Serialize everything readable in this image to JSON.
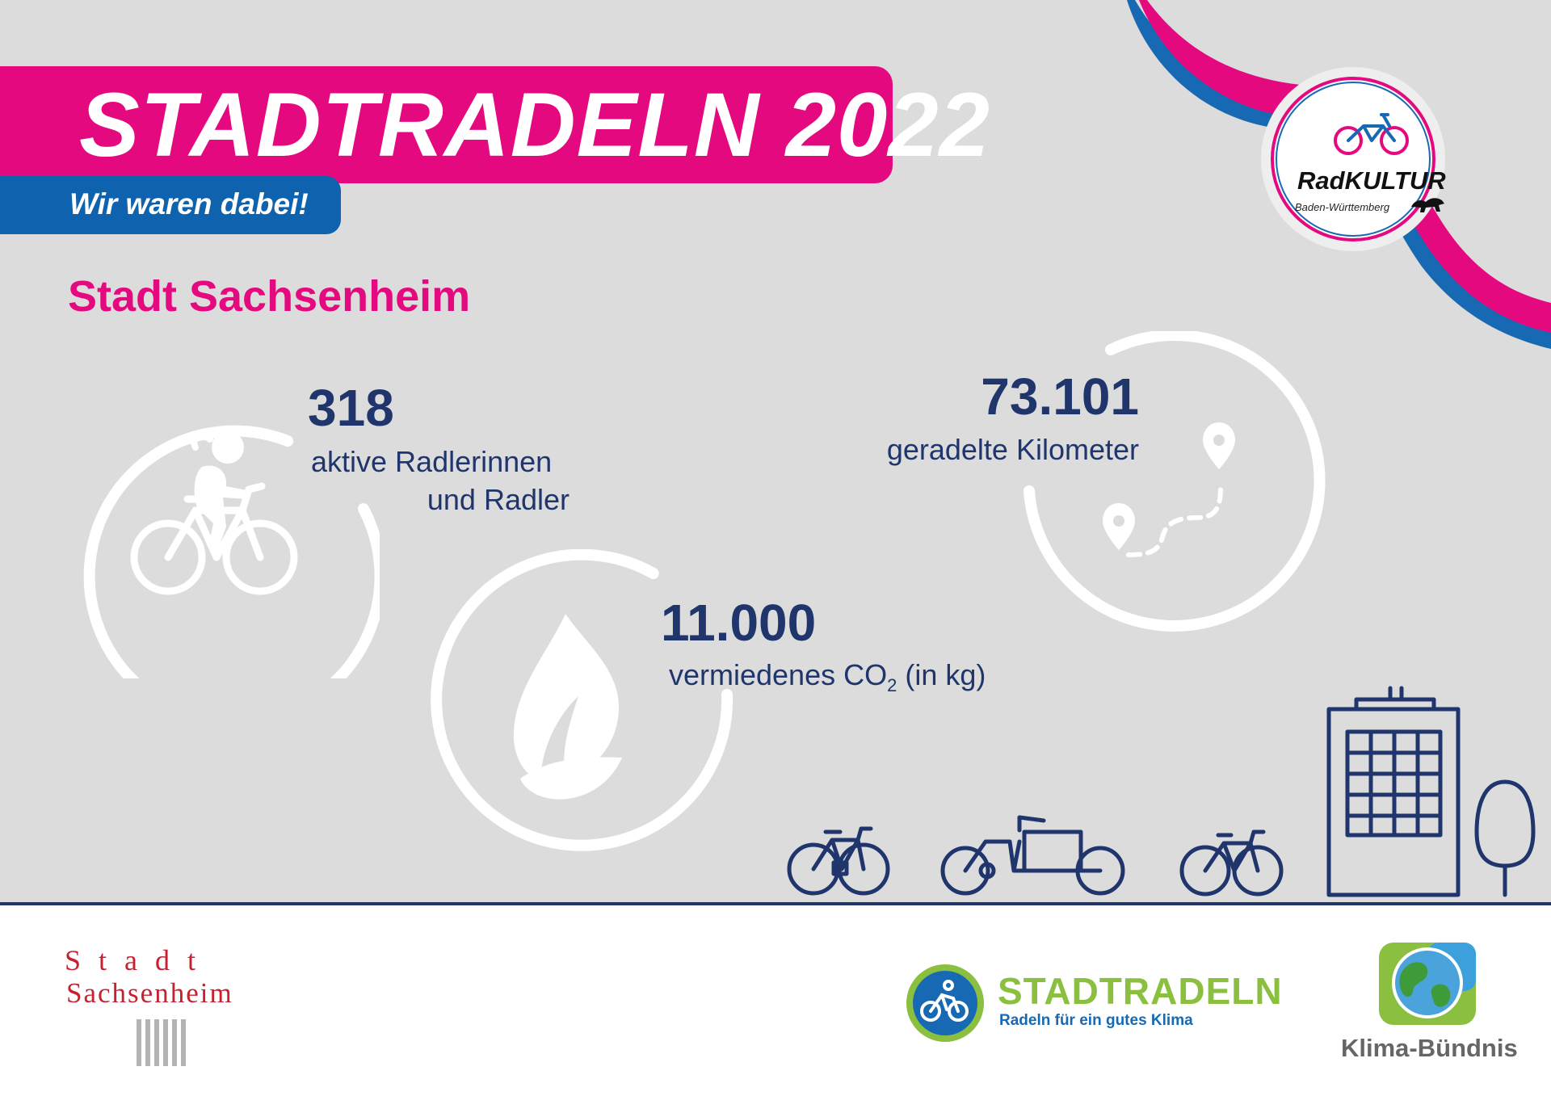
{
  "header": {
    "title": "STADTRADELN 2022",
    "subtitle": "Wir waren dabei!"
  },
  "city_name": "Stadt Sachsenheim",
  "stats": {
    "cyclists": {
      "value": "318",
      "label_line1": "aktive Radlerinnen",
      "label_line2": "und Radler",
      "icon": "cyclist-icon"
    },
    "co2": {
      "value": "11.000",
      "label_prefix": "vermiedenes CO",
      "label_sub": "2",
      "label_suffix": " (in kg)",
      "icon": "leaf-icon"
    },
    "kilometers": {
      "value": "73.101",
      "label": "geradelte Kilometer",
      "icon": "route-pin-icon"
    }
  },
  "radkultur_logo": {
    "name": "RadKULTUR",
    "region": "Baden-Württemberg"
  },
  "footer": {
    "city_logo": {
      "line1": "Stadt",
      "line2": "Sachsenheim"
    },
    "stadtradeln_logo": {
      "name": "STADTRADELN",
      "tagline": "Radeln für ein gutes Klima"
    },
    "klima_logo": {
      "name": "Klima-Bündnis"
    }
  },
  "colors": {
    "pink": "#e5097f",
    "blue": "#0f62ad",
    "navy": "#1f356b",
    "background": "#dcdcdc",
    "green": "#8bbf3f",
    "red": "#c8202e"
  }
}
